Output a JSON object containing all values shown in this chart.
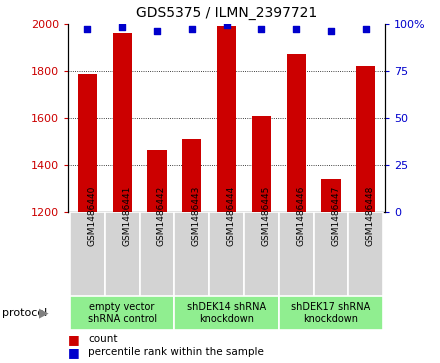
{
  "title": "GDS5375 / ILMN_2397721",
  "samples": [
    "GSM1486440",
    "GSM1486441",
    "GSM1486442",
    "GSM1486443",
    "GSM1486444",
    "GSM1486445",
    "GSM1486446",
    "GSM1486447",
    "GSM1486448"
  ],
  "counts": [
    1785,
    1960,
    1465,
    1510,
    1990,
    1610,
    1870,
    1340,
    1820
  ],
  "percentiles": [
    97,
    98,
    96,
    97,
    99,
    97,
    97,
    96,
    97
  ],
  "ylim_left": [
    1200,
    2000
  ],
  "ylim_right": [
    0,
    100
  ],
  "yticks_left": [
    1200,
    1400,
    1600,
    1800,
    2000
  ],
  "yticks_right": [
    0,
    25,
    50,
    75,
    100
  ],
  "bar_color": "#cc0000",
  "dot_color": "#0000cc",
  "protocol_groups": [
    {
      "label": "empty vector\nshRNA control",
      "start": 0,
      "end": 3,
      "color": "#90ee90"
    },
    {
      "label": "shDEK14 shRNA\nknockdown",
      "start": 3,
      "end": 6,
      "color": "#90ee90"
    },
    {
      "label": "shDEK17 shRNA\nknockdown",
      "start": 6,
      "end": 9,
      "color": "#90ee90"
    }
  ],
  "protocol_label": "protocol",
  "legend_count_label": "count",
  "legend_percentile_label": "percentile rank within the sample",
  "bar_width": 0.55,
  "axis_label_color_left": "#cc0000",
  "axis_label_color_right": "#0000cc",
  "sample_box_color": "#d3d3d3",
  "bg_color": "#ffffff"
}
